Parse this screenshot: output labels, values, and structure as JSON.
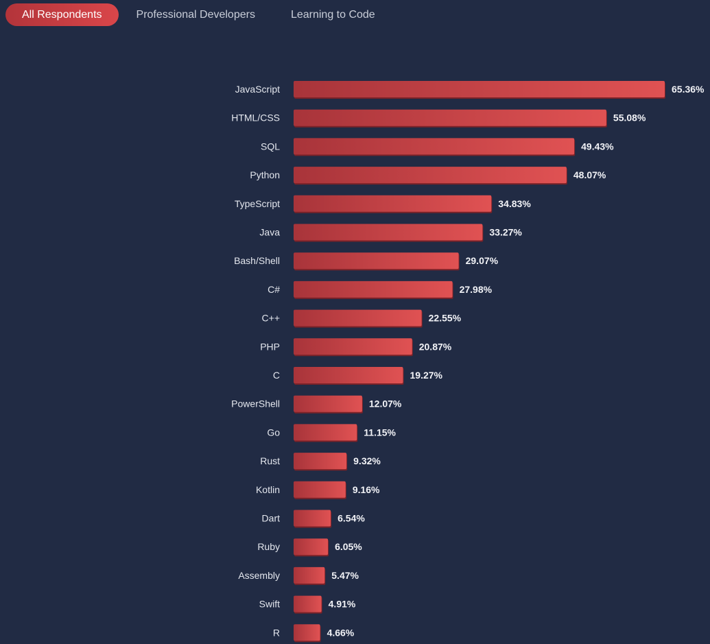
{
  "tabs": [
    {
      "label": "All Respondents",
      "active": true
    },
    {
      "label": "Professional Developers",
      "active": false
    },
    {
      "label": "Learning to Code",
      "active": false
    }
  ],
  "colors": {
    "background": "#212b44",
    "bar_start": "#a8343a",
    "bar_end": "#e05253",
    "bar_shadow": "#7a2228",
    "tab_active": "#c73d42"
  },
  "chart_data": {
    "type": "bar",
    "orientation": "horizontal",
    "title": "",
    "xlabel": "",
    "ylabel": "",
    "xlim": [
      0,
      65.36
    ],
    "grid": false,
    "categories": [
      "JavaScript",
      "HTML/CSS",
      "SQL",
      "Python",
      "TypeScript",
      "Java",
      "Bash/Shell",
      "C#",
      "C++",
      "PHP",
      "C",
      "PowerShell",
      "Go",
      "Rust",
      "Kotlin",
      "Dart",
      "Ruby",
      "Assembly",
      "Swift",
      "R"
    ],
    "values": [
      65.36,
      55.08,
      49.43,
      48.07,
      34.83,
      33.27,
      29.07,
      27.98,
      22.55,
      20.87,
      19.27,
      12.07,
      11.15,
      9.32,
      9.16,
      6.54,
      6.05,
      5.47,
      4.91,
      4.66
    ],
    "value_labels": [
      "65.36%",
      "55.08%",
      "49.43%",
      "48.07%",
      "34.83%",
      "33.27%",
      "29.07%",
      "27.98%",
      "22.55%",
      "20.87%",
      "19.27%",
      "12.07%",
      "11.15%",
      "9.32%",
      "9.16%",
      "6.54%",
      "6.05%",
      "5.47%",
      "4.91%",
      "4.66%"
    ]
  }
}
